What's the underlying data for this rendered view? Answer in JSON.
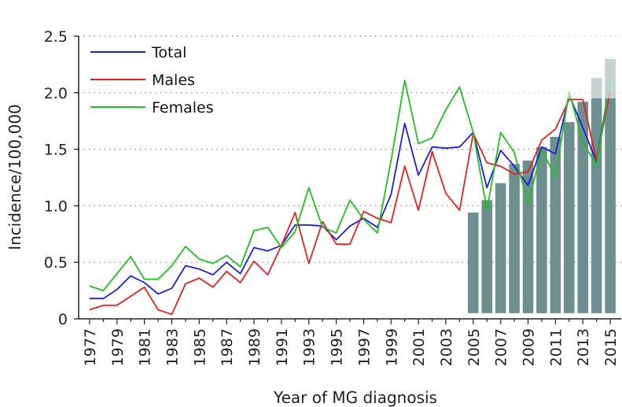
{
  "chart_data": {
    "type": "line",
    "title": "",
    "xlabel": "Year of MG diagnosis",
    "ylabel": "Incidence/100,000",
    "ylim": [
      0,
      2.5
    ],
    "xlim": [
      1976.2,
      2015.8
    ],
    "yticks": [
      0,
      0.5,
      1.0,
      1.5,
      2.0,
      2.5
    ],
    "ytick_labels": [
      "0",
      "0.5",
      "1.0",
      "1.5",
      "2.0",
      "2.5"
    ],
    "xtick_labels": [
      "1977",
      "1979",
      "1981",
      "1983",
      "1985",
      "1987",
      "1989",
      "1991",
      "1993",
      "1995",
      "1997",
      "1999",
      "2001",
      "2003",
      "2005",
      "2007",
      "2009",
      "2011",
      "2013",
      "2015"
    ],
    "grid": "horizontal dotted",
    "legend_position": "top-left",
    "x": [
      1977,
      1978,
      1979,
      1980,
      1981,
      1982,
      1983,
      1984,
      1985,
      1986,
      1987,
      1988,
      1989,
      1990,
      1991,
      1992,
      1993,
      1994,
      1995,
      1996,
      1997,
      1998,
      1999,
      2000,
      2001,
      2002,
      2003,
      2004,
      2005,
      2006,
      2007,
      2008,
      2009,
      2010,
      2011,
      2012,
      2013,
      2014,
      2015
    ],
    "series": [
      {
        "name": "Total",
        "color": "#1f1fe0",
        "values": [
          0.18,
          0.18,
          0.26,
          0.38,
          0.32,
          0.22,
          0.27,
          0.47,
          0.44,
          0.39,
          0.5,
          0.4,
          0.63,
          0.6,
          0.65,
          0.83,
          0.83,
          0.82,
          0.7,
          0.82,
          0.89,
          0.81,
          1.1,
          1.73,
          1.27,
          1.52,
          1.51,
          1.52,
          1.65,
          1.16,
          1.49,
          1.35,
          1.18,
          1.52,
          1.46,
          1.98,
          1.69,
          1.39,
          2.12
        ]
      },
      {
        "name": "Males",
        "color": "#e82020",
        "values": [
          0.08,
          0.12,
          0.12,
          0.2,
          0.28,
          0.08,
          0.04,
          0.31,
          0.36,
          0.28,
          0.42,
          0.32,
          0.51,
          0.39,
          0.65,
          0.94,
          0.49,
          0.86,
          0.66,
          0.66,
          0.95,
          0.89,
          0.85,
          1.35,
          0.96,
          1.48,
          1.11,
          0.96,
          1.64,
          1.38,
          1.35,
          1.28,
          1.3,
          1.58,
          1.68,
          1.94,
          1.94,
          1.4,
          2.02
        ]
      },
      {
        "name": "Females",
        "color": "#20c020",
        "values": [
          0.29,
          0.25,
          0.4,
          0.55,
          0.35,
          0.35,
          0.47,
          0.64,
          0.53,
          0.49,
          0.56,
          0.46,
          0.78,
          0.81,
          0.63,
          0.77,
          1.16,
          0.81,
          0.76,
          1.05,
          0.88,
          0.76,
          1.4,
          2.11,
          1.55,
          1.6,
          1.85,
          2.05,
          1.65,
          0.96,
          1.65,
          1.47,
          1.02,
          1.49,
          1.26,
          2.01,
          1.56,
          1.36,
          2.12
        ]
      }
    ],
    "bar_overlay": {
      "color": "#6e8f8f",
      "categories": [
        2005,
        2006,
        2007,
        2008,
        2009,
        2010,
        2011,
        2012,
        2013,
        2014,
        2015
      ],
      "values": [
        0.94,
        1.05,
        1.2,
        1.37,
        1.4,
        1.52,
        1.61,
        1.74,
        1.92,
        2.13,
        2.3
      ]
    }
  }
}
